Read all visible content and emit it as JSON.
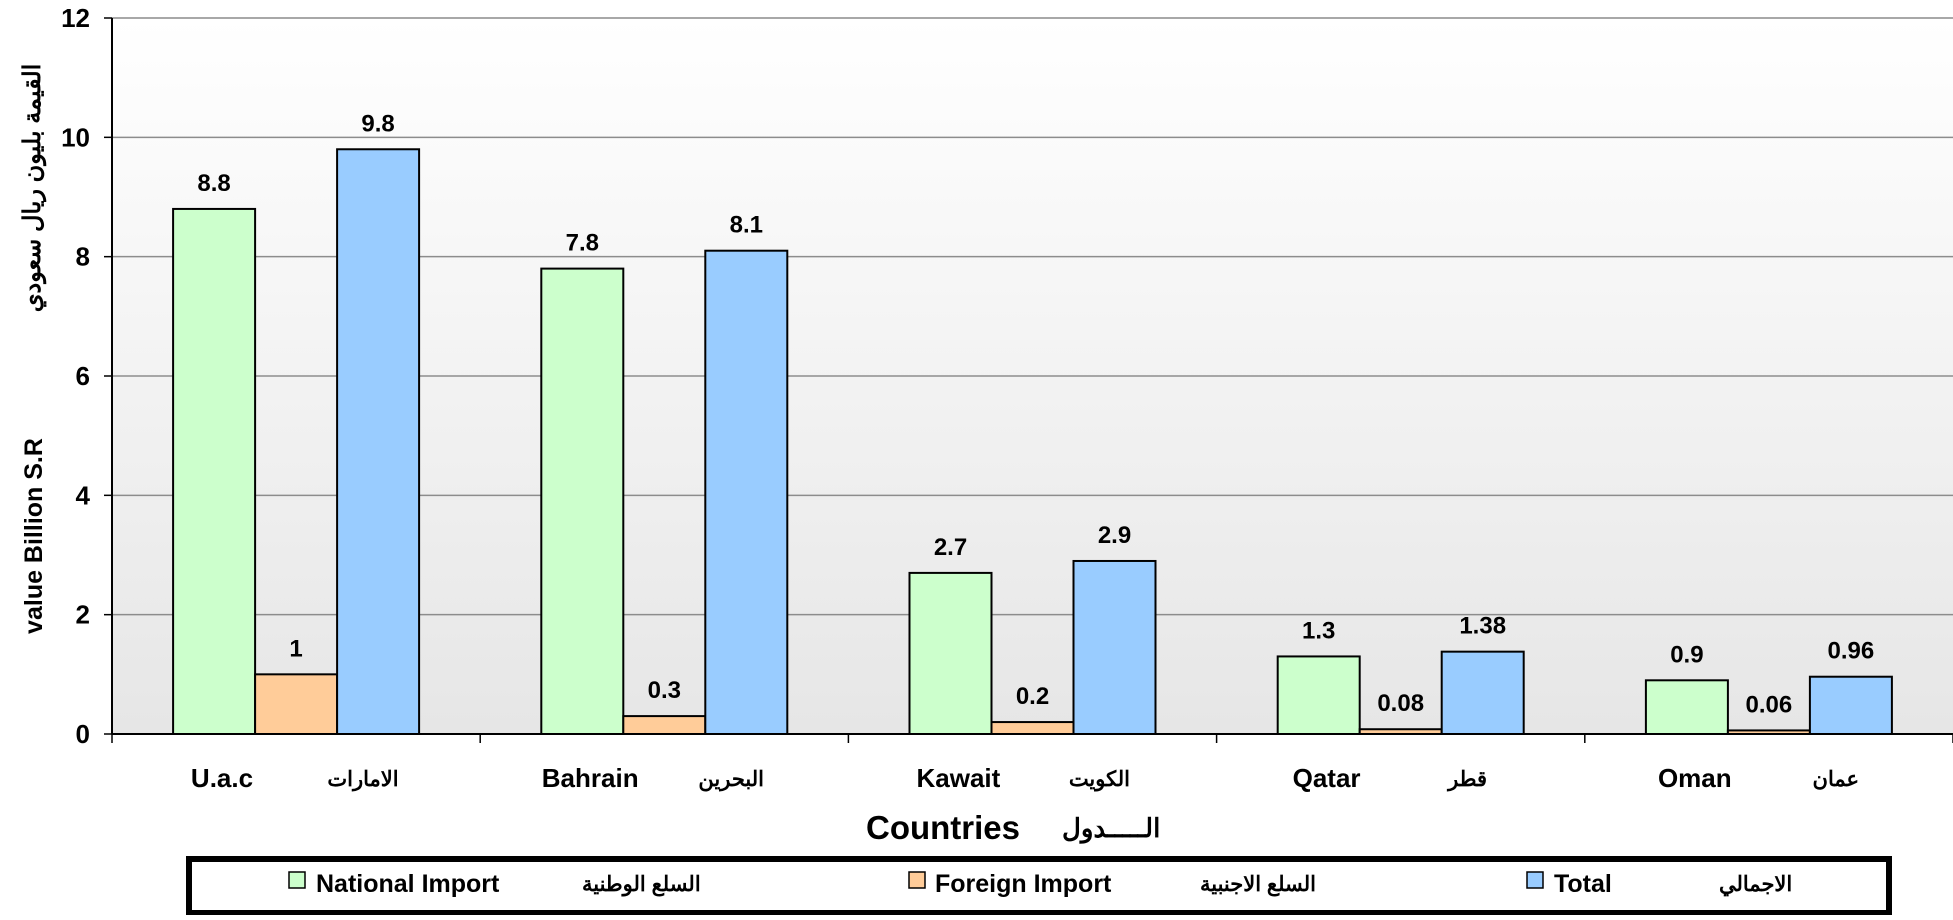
{
  "chart_data": {
    "type": "bar",
    "categories": [
      {
        "en": "U.a.c",
        "ar": "الامارات"
      },
      {
        "en": "Bahrain",
        "ar": "البحرين"
      },
      {
        "en": "Kawait",
        "ar": "الكويت"
      },
      {
        "en": "Qatar",
        "ar": "قطر"
      },
      {
        "en": "Oman",
        "ar": "عمان"
      }
    ],
    "series": [
      {
        "name": "National Import",
        "name_ar": "السلع الوطنية",
        "color": "#ccffcc",
        "values": [
          8.8,
          7.8,
          2.7,
          1.3,
          0.9
        ],
        "labels": [
          "8.8",
          "7.8",
          "2.7",
          "1.3",
          "0.9"
        ]
      },
      {
        "name": "Foreign Import",
        "name_ar": "السلع الاجنبية",
        "color": "#ffcc99",
        "values": [
          1,
          0.3,
          0.2,
          0.08,
          0.06
        ],
        "labels": [
          "1",
          "0.3",
          "0.2",
          "0.08",
          "0.06"
        ]
      },
      {
        "name": "Total",
        "name_ar": "الاجمالي",
        "color": "#99ccff",
        "values": [
          9.8,
          8.1,
          2.9,
          1.38,
          0.96
        ],
        "labels": [
          "9.8",
          "8.1",
          "2.9",
          "1.38",
          "0.96"
        ]
      }
    ],
    "xlabel": {
      "en": "Countries",
      "ar": "الـــــدول"
    },
    "ylabel": {
      "en": "value Billion S.R",
      "ar": "القيمة بليون ريال سعودي"
    },
    "ylim": [
      0,
      12
    ],
    "yticks": [
      "0",
      "2",
      "4",
      "6",
      "8",
      "10",
      "12"
    ],
    "grid": true,
    "legend_position": "bottom",
    "plot_background": "gradient grey"
  }
}
